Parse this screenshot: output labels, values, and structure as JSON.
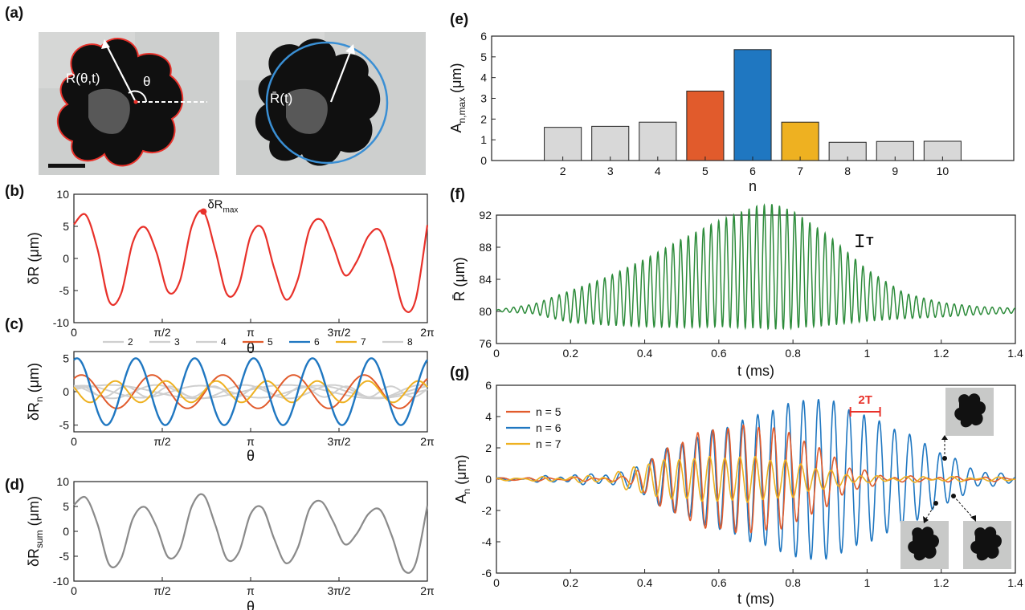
{
  "panel_labels": {
    "a": "(a)",
    "b": "(b)",
    "c": "(c)",
    "d": "(d)",
    "e": "(e)",
    "f": "(f)",
    "g": "(g)"
  },
  "image_annotations": {
    "radius": "R(θ,t)",
    "theta": "θ",
    "mean_radius": "R̄(t)"
  },
  "colors": {
    "n5": "#e15b2c",
    "n6": "#1f77c1",
    "n7": "#eeb121",
    "gray": "#cfcfcf",
    "b_line": "#e8312a",
    "d_line": "#8a8a8a",
    "f_line": "#2c8b3a",
    "circle": "#3a8fd4",
    "contour": "#e8312a"
  },
  "chart_data": [
    {
      "id": "b",
      "type": "line",
      "ylabel": "δR (μm)",
      "xlabel": "θ",
      "ylim": [
        -10,
        10
      ],
      "yticks": [
        "10",
        "5",
        "0",
        "-5",
        "-10"
      ],
      "xticks": [
        "0",
        "π/2",
        "π",
        "3π/2",
        "2π"
      ],
      "annotation": "δR",
      "annotation_sub": "max",
      "series": [
        {
          "values": [
            5.3,
            6.8,
            1.5,
            -6.7,
            -5.5,
            2.5,
            4.9,
            1.0,
            -5.2,
            -3.5,
            5.0,
            7.3,
            1.3,
            -5.6,
            -4.2,
            3.5,
            4.7,
            -1.5,
            -6.4,
            -3.3,
            4.5,
            6.0,
            2.0,
            -2.6,
            -0.5,
            3.5,
            4.3,
            -1.0,
            -7.8,
            -6.5,
            5.2
          ]
        }
      ]
    },
    {
      "id": "c",
      "type": "line",
      "ylabel": "δRn (μm)",
      "xlabel": "θ",
      "ylim": [
        -6,
        6
      ],
      "yticks": [
        "5",
        "0",
        "-5"
      ],
      "xticks": [
        "0",
        "π/2",
        "π",
        "3π/2",
        "2π"
      ],
      "legend": [
        "2",
        "3",
        "4",
        "5",
        "6",
        "7",
        "8"
      ],
      "series": [
        {
          "name": "2",
          "amplitude": 1.0,
          "n": 2
        },
        {
          "name": "3",
          "amplitude": 0.9,
          "n": 3
        },
        {
          "name": "4",
          "amplitude": 1.0,
          "n": 4
        },
        {
          "name": "5",
          "amplitude": 2.5,
          "n": 5
        },
        {
          "name": "6",
          "amplitude": 5.0,
          "n": 6
        },
        {
          "name": "7",
          "amplitude": 1.6,
          "n": 7
        },
        {
          "name": "8",
          "amplitude": 0.8,
          "n": 8
        }
      ]
    },
    {
      "id": "d",
      "type": "line",
      "ylabel": "δRsum (μm)",
      "xlabel": "θ",
      "ylim": [
        -10,
        10
      ],
      "yticks": [
        "10",
        "5",
        "0",
        "-5",
        "-10"
      ],
      "xticks": [
        "0",
        "π/2",
        "π",
        "3π/2",
        "2π"
      ],
      "series": [
        {
          "values": [
            5.3,
            6.8,
            1.5,
            -6.7,
            -5.5,
            2.5,
            4.9,
            1.0,
            -5.2,
            -3.5,
            5.0,
            7.3,
            1.3,
            -5.6,
            -4.2,
            3.5,
            4.7,
            -1.5,
            -6.4,
            -3.3,
            4.5,
            6.0,
            2.0,
            -2.6,
            -0.5,
            3.5,
            4.3,
            -1.0,
            -7.8,
            -6.5,
            5.2
          ]
        }
      ]
    },
    {
      "id": "e",
      "type": "bar",
      "ylabel": "An,max (μm)",
      "xlabel": "n",
      "ylim": [
        0,
        6
      ],
      "yticks": [
        "6",
        "5",
        "4",
        "3",
        "2",
        "1",
        "0"
      ],
      "categories": [
        "2",
        "3",
        "4",
        "5",
        "6",
        "7",
        "8",
        "9",
        "10"
      ],
      "values": [
        1.6,
        1.65,
        1.85,
        3.35,
        5.35,
        1.85,
        0.88,
        0.92,
        0.93
      ]
    },
    {
      "id": "f",
      "type": "line",
      "ylabel": "R̄ (μm)",
      "xlabel": "t (ms)",
      "ylim": [
        76,
        92
      ],
      "xlim": [
        0,
        1.4
      ],
      "yticks": [
        "92",
        "88",
        "84",
        "80",
        "76"
      ],
      "xticks": [
        "0",
        "0.2",
        "0.4",
        "0.6",
        "0.8",
        "1",
        "1.2",
        "1.4"
      ],
      "period_marker": "T",
      "envelope_t": [
        0,
        0.1,
        0.2,
        0.3,
        0.4,
        0.5,
        0.6,
        0.7,
        0.75,
        0.8,
        0.9,
        1.0,
        1.1,
        1.2,
        1.3,
        1.4
      ],
      "envelope_amp": [
        0.1,
        0.6,
        2.0,
        3.0,
        4.2,
        5.5,
        6.6,
        7.6,
        7.8,
        7.3,
        5.5,
        3.2,
        1.6,
        0.9,
        0.5,
        0.3
      ],
      "envelope_mean": [
        80.1,
        80.3,
        80.6,
        81.3,
        82.3,
        83.5,
        84.7,
        85.5,
        85.6,
        85.2,
        83.8,
        82.0,
        80.7,
        80.2,
        80.1,
        80.1
      ],
      "period_ms": 0.0205
    },
    {
      "id": "g",
      "type": "line",
      "ylabel": "An (μm)",
      "xlabel": "t (ms)",
      "ylim": [
        -6,
        6
      ],
      "xlim": [
        0,
        1.4
      ],
      "yticks": [
        "6",
        "4",
        "2",
        "0",
        "-2",
        "-4",
        "-6"
      ],
      "xticks": [
        "0",
        "0.2",
        "0.4",
        "0.6",
        "0.8",
        "1",
        "1.2",
        "1.4"
      ],
      "legend": [
        "n = 5",
        "n = 6",
        "n = 7"
      ],
      "period_marker": "2T",
      "series": [
        {
          "name": "n = 5",
          "period_ms": 0.041,
          "env_t": [
            0,
            0.35,
            0.45,
            0.55,
            0.65,
            0.75,
            0.85,
            0.95,
            1.05,
            1.4
          ],
          "env_a": [
            0,
            0.1,
            1.8,
            3.0,
            3.4,
            3.3,
            2.3,
            0.8,
            0.15,
            0.05
          ]
        },
        {
          "name": "n = 6",
          "period_ms": 0.041,
          "env_t": [
            0,
            0.35,
            0.45,
            0.55,
            0.65,
            0.75,
            0.85,
            0.9,
            1.0,
            1.1,
            1.2,
            1.3,
            1.4
          ],
          "env_a": [
            0,
            0.4,
            1.8,
            2.8,
            3.6,
            4.5,
            5.2,
            5.0,
            4.0,
            3.0,
            1.7,
            0.5,
            0.2
          ]
        },
        {
          "name": "n = 7",
          "period_ms": 0.041,
          "env_t": [
            0,
            0.3,
            0.4,
            0.5,
            0.6,
            0.7,
            0.8,
            0.9,
            1.0,
            1.4
          ],
          "env_a": [
            0,
            0.2,
            1.0,
            1.3,
            1.4,
            1.4,
            1.1,
            0.5,
            0.15,
            0.05
          ]
        }
      ]
    }
  ]
}
